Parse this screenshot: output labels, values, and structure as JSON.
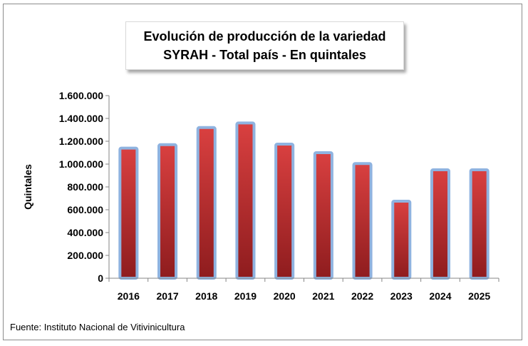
{
  "chart_data": {
    "type": "bar",
    "title_line1": "Evolución de producción de la variedad",
    "title_line2": "SYRAH - Total país - En quintales",
    "ylabel": "Quintales",
    "xlabel": "",
    "categories": [
      "2016",
      "2017",
      "2018",
      "2019",
      "2020",
      "2021",
      "2022",
      "2023",
      "2024",
      "2025"
    ],
    "values": [
      1140000,
      1170000,
      1320000,
      1360000,
      1175000,
      1100000,
      1005000,
      675000,
      950000,
      950000
    ],
    "ylim": [
      0,
      1600000
    ],
    "yticks": [
      0,
      200000,
      400000,
      600000,
      800000,
      1000000,
      1200000,
      1400000,
      1600000
    ],
    "ytick_labels": [
      "0",
      "200.000",
      "400.000",
      "600.000",
      "800.000",
      "1.000.000",
      "1.200.000",
      "1.400.000",
      "1.600.000"
    ],
    "bar_color": "#c0282a",
    "bar_border_color": "#8fb3e0",
    "grid": false,
    "legend": "none"
  },
  "source_text": "Fuente: Instituto Nacional de Vitivinicultura"
}
